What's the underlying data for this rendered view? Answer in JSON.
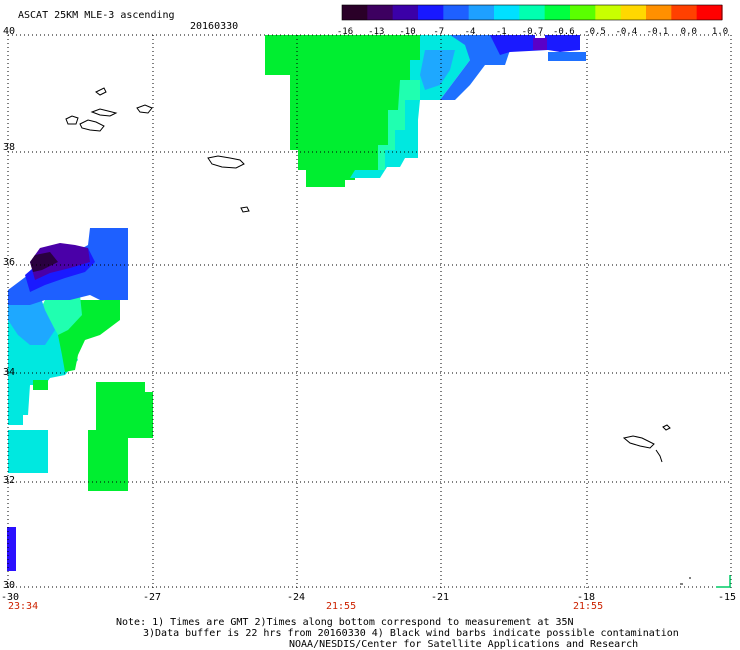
{
  "header": {
    "title": "ASCAT 25KM MLE-3 ascending",
    "date": "20160330"
  },
  "colorbar": {
    "labels": [
      "-16",
      "-13",
      "-10",
      "-7",
      "-4",
      "-1",
      "-0.7",
      "-0.6",
      "-0.5",
      "-0.4",
      "-0.1",
      "0.0",
      "1.0"
    ],
    "colors": [
      "#2a0028",
      "#3d0060",
      "#3b00a8",
      "#1818ff",
      "#1e60ff",
      "#1ea0ff",
      "#00e0ff",
      "#00ffb0",
      "#00ff40",
      "#5aff00",
      "#c8ff00",
      "#ffd800",
      "#ff9000",
      "#ff4000",
      "#ff0000"
    ]
  },
  "map": {
    "lon_labels": [
      "-30",
      "-27",
      "-24",
      "-21",
      "-18",
      "-15"
    ],
    "lat_labels": [
      "40",
      "38",
      "36",
      "34",
      "32",
      "30"
    ],
    "time_labels": [
      "23:34",
      "21:55",
      "21:55"
    ]
  },
  "footer": {
    "note_line1": "Note: 1) Times are GMT 2)Times along bottom correspond to measurement at 35N",
    "note_line2": "3)Data buffer is 22 hrs from 20160330 4) Black wind barbs indicate possible contamination",
    "credit": "NOAA/NESDIS/Center for Satellite Applications and Research"
  }
}
